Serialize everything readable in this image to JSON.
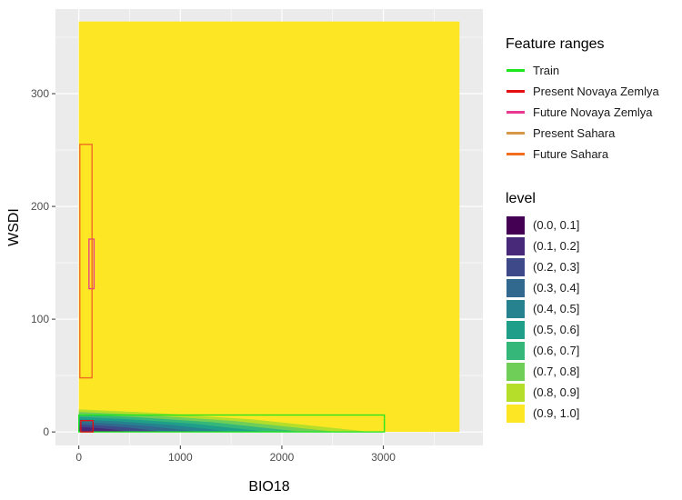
{
  "chart_data": {
    "type": "contour-filled",
    "xlabel": "BIO18",
    "ylabel": "WSDI",
    "xlim": [
      -230,
      3980
    ],
    "ylim": [
      -12,
      375
    ],
    "x_ticks": [
      0,
      1000,
      2000,
      3000
    ],
    "y_ticks": [
      0,
      100,
      200,
      300
    ],
    "x_tick_labels": [
      "0",
      "1000",
      "2000",
      "3000"
    ],
    "y_tick_labels": [
      "0",
      "100",
      "200",
      "300"
    ],
    "grid": true,
    "legend_position": "right",
    "domain": {
      "x": [
        0,
        3750
      ],
      "y": [
        0,
        364
      ]
    },
    "low_band_region": {
      "x": [
        0,
        2880
      ],
      "y_max": 20
    },
    "feature_ranges": {
      "title": "Feature ranges",
      "entries": [
        {
          "name": "Train",
          "color": "#1ee51e",
          "x": [
            0,
            3010
          ],
          "y": [
            0,
            15
          ]
        },
        {
          "name": "Present Novaya Zemlya",
          "color": "#e60f0f",
          "x": [
            20,
            140
          ],
          "y": [
            0,
            10
          ]
        },
        {
          "name": "Future Novaya Zemlya",
          "color": "#e8388f",
          "x": [
            100,
            150
          ],
          "y": [
            127,
            171
          ]
        },
        {
          "name": "Present Sahara",
          "color": "#d9974a",
          "x": [
            10,
            130
          ],
          "y": [
            48,
            255
          ]
        },
        {
          "name": "Future Sahara",
          "color": "#f26d1d",
          "x": [
            10,
            130
          ],
          "y": [
            48,
            255
          ]
        }
      ]
    },
    "levels": {
      "title": "level",
      "entries": [
        {
          "name": "(0.0, 0.1]",
          "color": "#440154"
        },
        {
          "name": "(0.1, 0.2]",
          "color": "#482878"
        },
        {
          "name": "(0.2, 0.3]",
          "color": "#3e4989"
        },
        {
          "name": "(0.3, 0.4]",
          "color": "#31688e"
        },
        {
          "name": "(0.4, 0.5]",
          "color": "#26828e"
        },
        {
          "name": "(0.5, 0.6]",
          "color": "#1f9e89"
        },
        {
          "name": "(0.6, 0.7]",
          "color": "#35b779"
        },
        {
          "name": "(0.7, 0.8]",
          "color": "#6ece58"
        },
        {
          "name": "(0.8, 0.9]",
          "color": "#b5de2b"
        },
        {
          "name": "(0.9, 1.0]",
          "color": "#fde725"
        }
      ]
    },
    "colors": {
      "panel_background": "#ebebeb",
      "grid": "#ffffff"
    }
  }
}
